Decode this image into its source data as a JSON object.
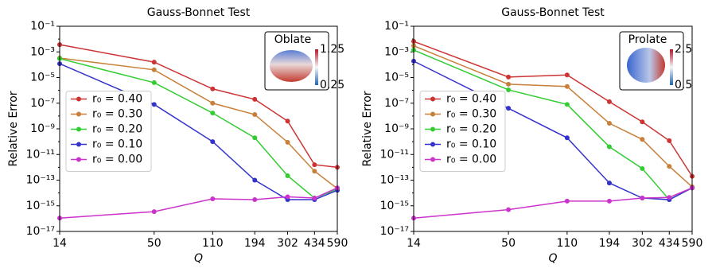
{
  "chart_data": [
    {
      "type": "line",
      "title": "Gauss-Bonnet Test",
      "xlabel": "Q",
      "ylabel": "Relative Error",
      "log_x": true,
      "log_y": true,
      "legend": "center left",
      "x": [
        14,
        50,
        110,
        194,
        302,
        434,
        590
      ],
      "xlim": [
        14,
        590
      ],
      "xticks": [
        14,
        50,
        110,
        194,
        302,
        434,
        590
      ],
      "ylim": [
        1e-17,
        0.1
      ],
      "yticks": [
        {
          "value": 1e-17,
          "label": "10⁻¹⁷"
        },
        {
          "value": 1e-15,
          "label": "10⁻¹⁵"
        },
        {
          "value": 1e-13,
          "label": "10⁻¹³"
        },
        {
          "value": 1e-11,
          "label": "10⁻¹¹"
        },
        {
          "value": 1e-09,
          "label": "10⁻⁹"
        },
        {
          "value": 1e-07,
          "label": "10⁻⁷"
        },
        {
          "value": 1e-05,
          "label": "10⁻⁵"
        },
        {
          "value": 0.001,
          "label": "10⁻³"
        },
        {
          "value": 0.1,
          "label": "10⁻¹"
        }
      ],
      "series": [
        {
          "name": "r₀ = 0.40",
          "color": "#cc3333",
          "values": [
            0.0037,
            0.00016,
            1.3e-06,
            2e-07,
            4e-09,
            1.6e-12,
            1e-12
          ]
        },
        {
          "name": "r₀ = 0.30",
          "color": "#c87f3a",
          "values": [
            0.00033,
            4e-05,
            1e-07,
            1.3e-08,
            9e-11,
            5e-13,
            2.2e-14
          ]
        },
        {
          "name": "r₀ = 0.20",
          "color": "#33cc33",
          "values": [
            0.0003,
            4e-06,
            1.7e-08,
            2e-10,
            2.2e-13,
            4e-15,
            2e-14
          ]
        },
        {
          "name": "r₀ = 0.10",
          "color": "#3333cc",
          "values": [
            0.00012,
            8e-08,
            1e-10,
            1e-13,
            3e-15,
            3e-15,
            1.6e-14
          ]
        },
        {
          "name": "r₀ = 0.00",
          "color": "#cc33cc",
          "values": [
            1.1e-16,
            3.5e-16,
            3.5e-15,
            3e-15,
            5e-15,
            4e-15,
            2.5e-14
          ]
        }
      ],
      "inset": {
        "label": "Oblate",
        "colorbar_ticks": [
          "1.25",
          "0.25"
        ]
      }
    },
    {
      "type": "line",
      "title": "Gauss-Bonnet Test",
      "xlabel": "Q",
      "ylabel": "Relative Error",
      "log_x": true,
      "log_y": true,
      "legend": "center left",
      "x": [
        14,
        50,
        110,
        194,
        302,
        434,
        590
      ],
      "xlim": [
        14,
        590
      ],
      "xticks": [
        14,
        50,
        110,
        194,
        302,
        434,
        590
      ],
      "ylim": [
        1e-17,
        0.1
      ],
      "yticks": [
        {
          "value": 1e-17,
          "label": "10⁻¹⁷"
        },
        {
          "value": 1e-15,
          "label": "10⁻¹⁵"
        },
        {
          "value": 1e-13,
          "label": "10⁻¹³"
        },
        {
          "value": 1e-11,
          "label": "10⁻¹¹"
        },
        {
          "value": 1e-09,
          "label": "10⁻⁹"
        },
        {
          "value": 1e-07,
          "label": "10⁻⁷"
        },
        {
          "value": 1e-05,
          "label": "10⁻⁵"
        },
        {
          "value": 0.001,
          "label": "10⁻³"
        },
        {
          "value": 0.1,
          "label": "10⁻¹"
        }
      ],
      "series": [
        {
          "name": "r₀ = 0.40",
          "color": "#cc3333",
          "values": [
            0.0066,
            1.1e-05,
            1.6e-05,
            1.3e-07,
            3.5e-09,
            1.2e-10,
            2e-13
          ]
        },
        {
          "name": "r₀ = 0.30",
          "color": "#c87f3a",
          "values": [
            0.003,
            3e-06,
            2e-06,
            2.7e-09,
            1.5e-10,
            1.2e-12,
            3e-14
          ]
        },
        {
          "name": "r₀ = 0.20",
          "color": "#33cc33",
          "values": [
            0.0014,
            1.1e-06,
            8e-08,
            4e-11,
            8e-13,
            3e-15,
            2.5e-14
          ]
        },
        {
          "name": "r₀ = 0.10",
          "color": "#3333cc",
          "values": [
            0.00019,
            4e-08,
            2e-10,
            6e-14,
            4e-15,
            3e-15,
            2.5e-14
          ]
        },
        {
          "name": "r₀ = 0.00",
          "color": "#cc33cc",
          "values": [
            1.1e-16,
            5e-16,
            2.3e-15,
            2.3e-15,
            4e-15,
            4.5e-15,
            2.5e-14
          ]
        }
      ],
      "inset": {
        "label": "Prolate",
        "colorbar_ticks": [
          "2.5",
          "0.5"
        ]
      }
    }
  ]
}
